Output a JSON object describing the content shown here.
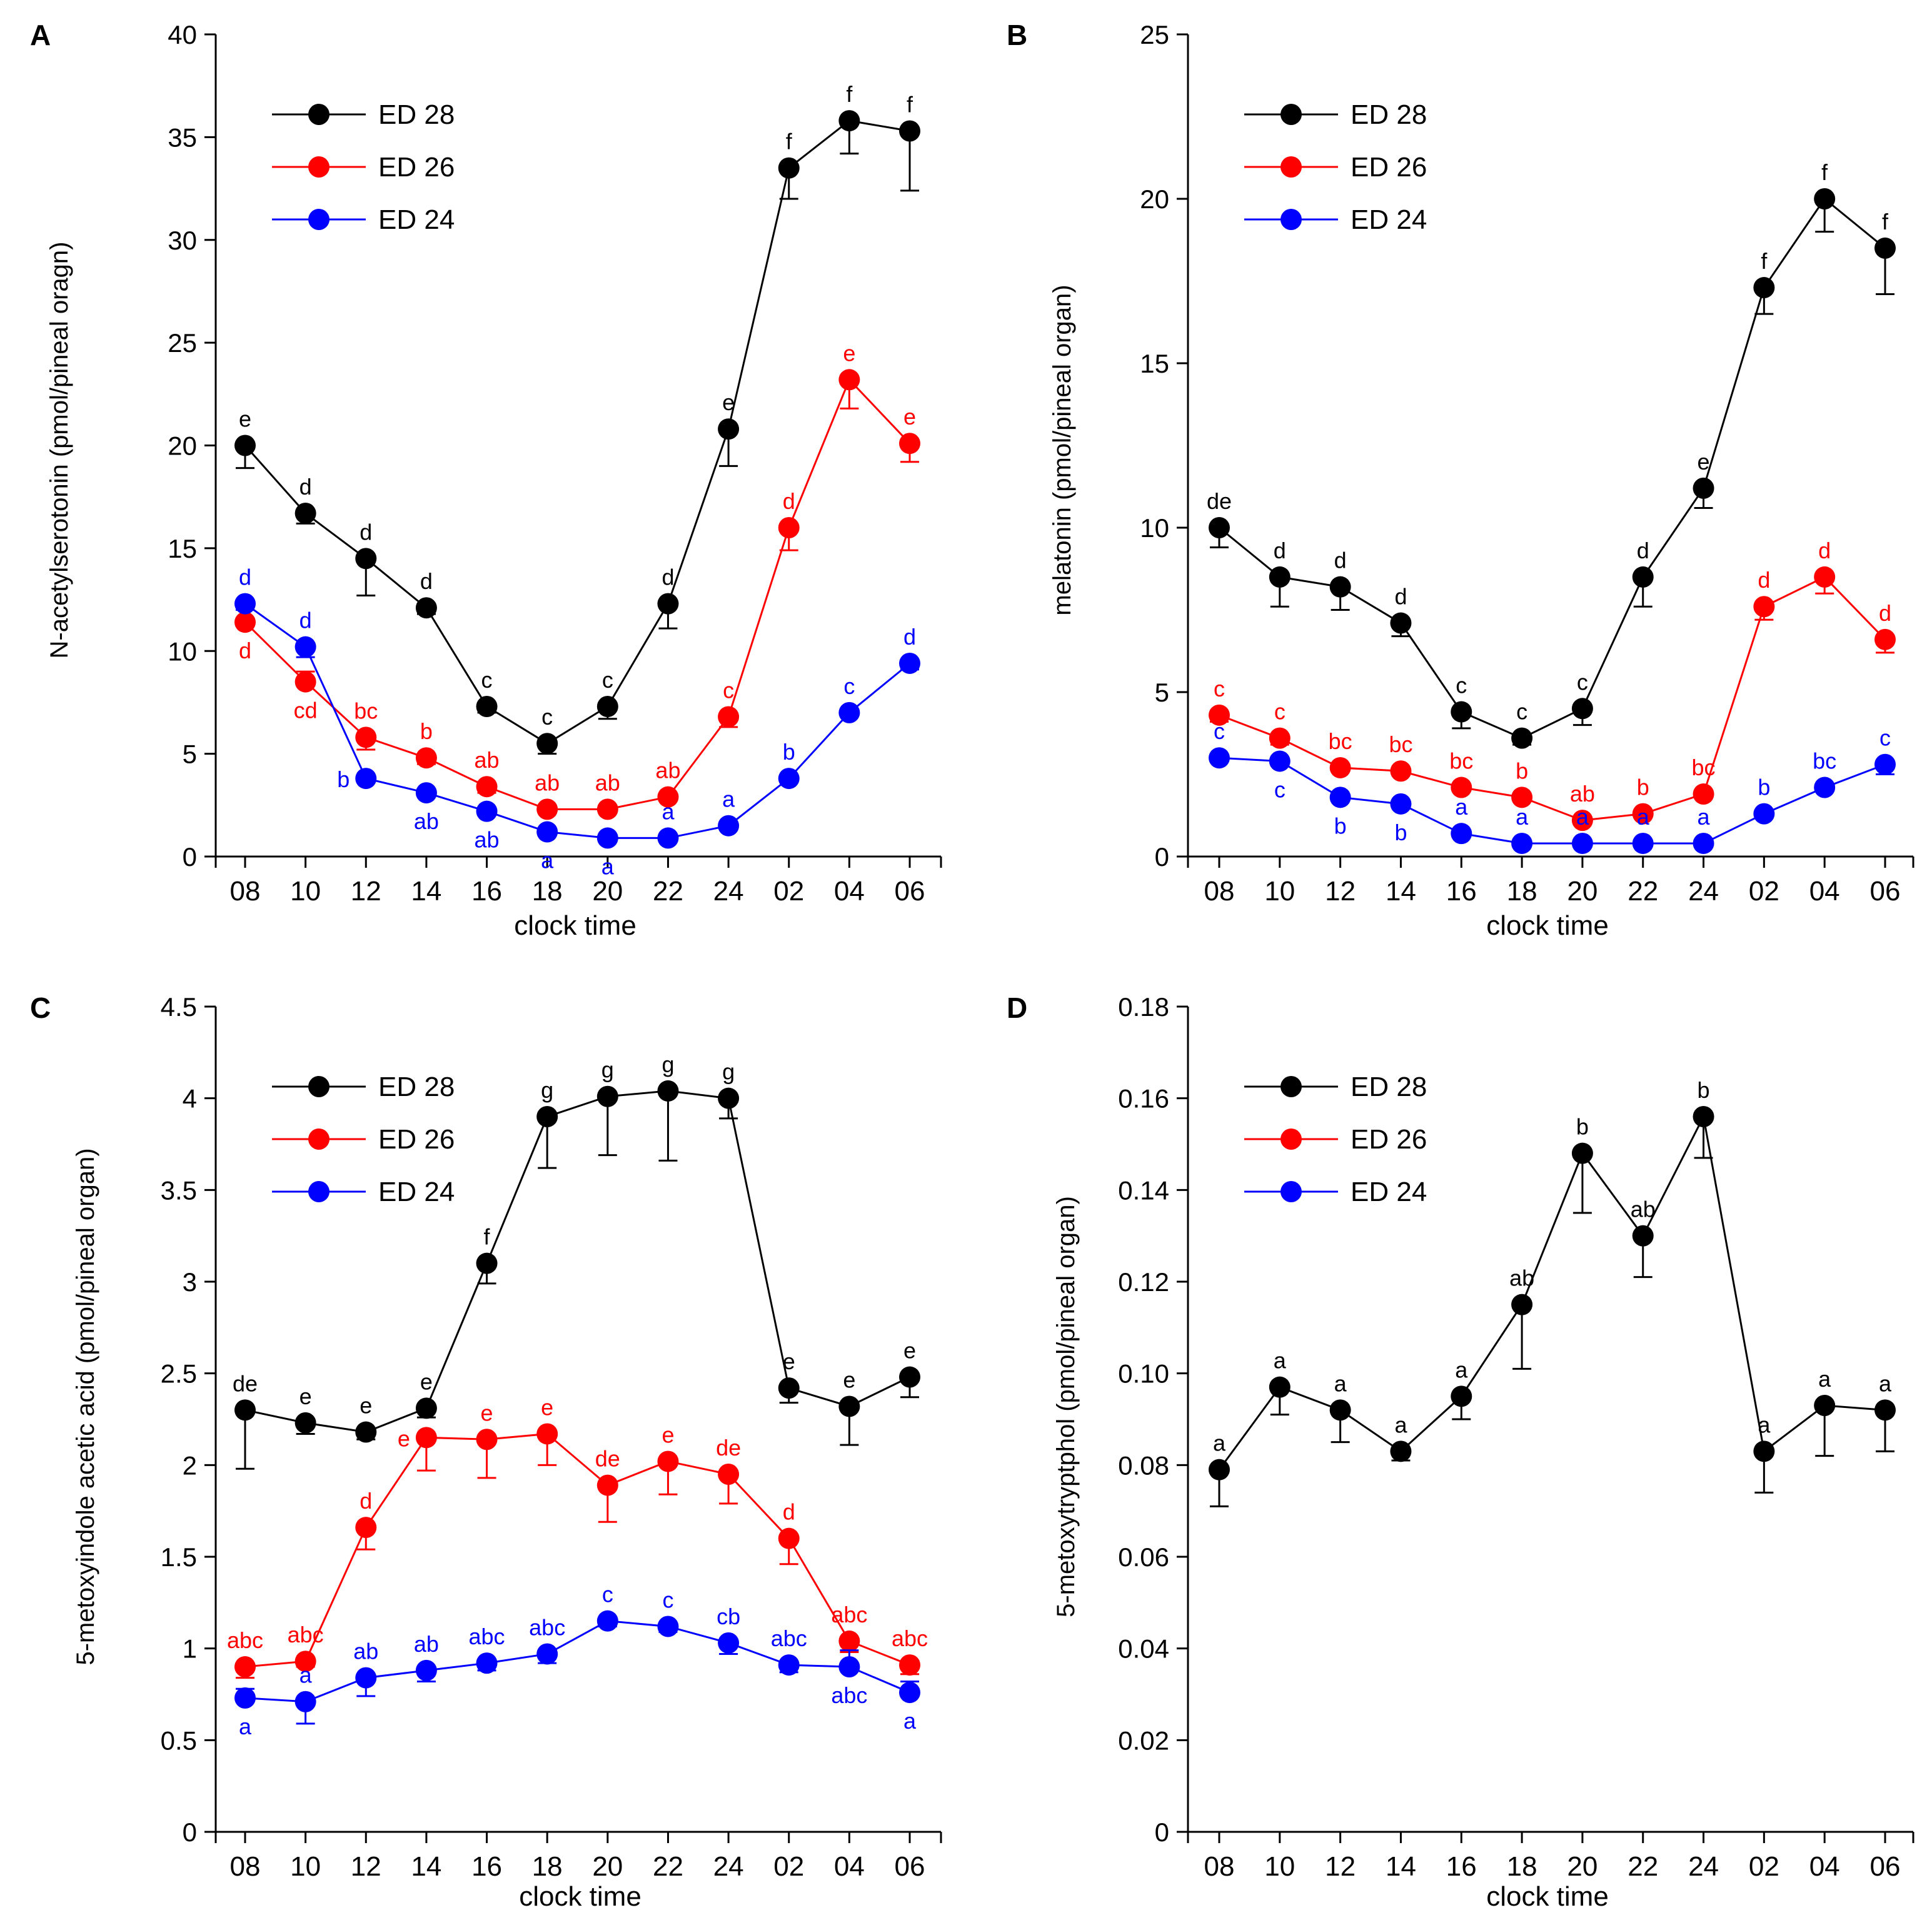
{
  "figure": {
    "colors": {
      "ED 28": "#000000",
      "ED 26": "#ff0000",
      "ED 24": "#0000ff",
      "axis": "#000000"
    }
  },
  "chart_data": [
    {
      "panel": "A",
      "type": "line",
      "xlabel": "clock time",
      "ylabel": "N-acetylserotonin  (pmol/pineal oragn)",
      "categories": [
        "08",
        "10",
        "12",
        "14",
        "16",
        "18",
        "20",
        "22",
        "24",
        "02",
        "04",
        "06"
      ],
      "ylim": [
        0,
        40
      ],
      "yticks": [
        0,
        5,
        10,
        15,
        20,
        25,
        30,
        35,
        40
      ],
      "ytick_labels": [
        "0",
        "5",
        "10",
        "15",
        "20",
        "25",
        "30",
        "35",
        "40"
      ],
      "legend": "top-left",
      "series": [
        {
          "name": "ED 28",
          "color": "#000000",
          "values": [
            20,
            16.7,
            14.5,
            12.1,
            7.3,
            5.5,
            7.3,
            12.3,
            20.8,
            33.5,
            35.8,
            35.3
          ],
          "errors": [
            1.1,
            0.5,
            1.8,
            0.3,
            0.3,
            0.5,
            0.6,
            1.2,
            1.8,
            1.5,
            1.6,
            2.9
          ],
          "labels": [
            "e",
            "d",
            "d",
            "d",
            "c",
            "c",
            "c",
            "d",
            "e",
            "f",
            "f",
            "f"
          ],
          "label_pos": [
            "above",
            "above",
            "above",
            "above",
            "above",
            "above",
            "above",
            "above",
            "above",
            "above",
            "above",
            "above"
          ]
        },
        {
          "name": "ED 26",
          "color": "#ff0000",
          "values": [
            11.4,
            8.5,
            5.8,
            4.8,
            3.4,
            2.3,
            2.3,
            2.9,
            6.8,
            16,
            23.2,
            20.1
          ],
          "errors": [
            0.6,
            0.5,
            0.6,
            0.3,
            0.3,
            0.2,
            0.2,
            0.2,
            0.5,
            1.1,
            1.4,
            0.9
          ],
          "labels": [
            "d",
            "cd",
            "bc",
            "b",
            "ab",
            "ab",
            "ab",
            "ab",
            "c",
            "d",
            "e",
            "e"
          ],
          "label_pos": [
            "below",
            "below",
            "above",
            "above",
            "above",
            "above",
            "above",
            "above",
            "above",
            "above",
            "above",
            "above"
          ]
        },
        {
          "name": "ED 24",
          "color": "#0000ff",
          "values": [
            12.3,
            10.2,
            3.8,
            3.1,
            2.2,
            1.2,
            0.9,
            0.9,
            1.5,
            3.8,
            7,
            9.4
          ],
          "errors": [
            0.3,
            0.5,
            0.2,
            0.2,
            0.2,
            0.1,
            0.1,
            0.1,
            0.1,
            0.2,
            0.2,
            0.3
          ],
          "labels": [
            "d",
            "d",
            "b",
            "ab",
            "ab",
            "a",
            "a",
            "a",
            "a",
            "b",
            "c",
            "d"
          ],
          "label_pos": [
            "above",
            "above",
            "left",
            "below",
            "below",
            "below",
            "below",
            "above",
            "above",
            "above",
            "above",
            "above"
          ]
        }
      ]
    },
    {
      "panel": "B",
      "type": "line",
      "xlabel": "clock time",
      "ylabel": "melatonin (pmol/pineal organ)",
      "categories": [
        "08",
        "10",
        "12",
        "14",
        "16",
        "18",
        "20",
        "22",
        "24",
        "02",
        "04",
        "06"
      ],
      "ylim": [
        0,
        25
      ],
      "yticks": [
        0,
        5,
        10,
        15,
        20,
        25
      ],
      "ytick_labels": [
        "0",
        "5",
        "10",
        "15",
        "20",
        "25"
      ],
      "legend": "top-left",
      "series": [
        {
          "name": "ED 28",
          "color": "#000000",
          "values": [
            10,
            8.5,
            8.2,
            7.1,
            4.4,
            3.6,
            4.5,
            8.5,
            11.2,
            17.3,
            20,
            18.5
          ],
          "errors": [
            0.6,
            0.9,
            0.7,
            0.4,
            0.5,
            0.2,
            0.5,
            0.9,
            0.6,
            0.8,
            1.0,
            1.4
          ],
          "labels": [
            "de",
            "d",
            "d",
            "d",
            "c",
            "c",
            "c",
            "d",
            "e",
            "f",
            "f",
            "f"
          ],
          "label_pos": [
            "above",
            "above",
            "above",
            "above",
            "above",
            "above",
            "above",
            "above",
            "above",
            "above",
            "above",
            "above"
          ]
        },
        {
          "name": "ED 26",
          "color": "#ff0000",
          "values": [
            4.3,
            3.6,
            2.7,
            2.6,
            2.1,
            1.8,
            1.1,
            1.3,
            1.9,
            7.6,
            8.5,
            6.6
          ],
          "errors": [
            0.2,
            0.2,
            0.1,
            0.1,
            0.1,
            0.1,
            0.1,
            0.1,
            0.1,
            0.4,
            0.5,
            0.4
          ],
          "labels": [
            "c",
            "c",
            "bc",
            "bc",
            "bc",
            "b",
            "ab",
            "b",
            "bc",
            "d",
            "d",
            "d"
          ],
          "label_pos": [
            "above",
            "above",
            "above",
            "above",
            "above",
            "above",
            "above",
            "above",
            "above",
            "above",
            "above",
            "above"
          ]
        },
        {
          "name": "ED 24",
          "color": "#0000ff",
          "values": [
            3.0,
            2.9,
            1.8,
            1.6,
            0.7,
            0.4,
            0.4,
            0.4,
            0.4,
            1.3,
            2.1,
            2.8
          ],
          "errors": [
            0.1,
            0.1,
            0.1,
            0.1,
            0.1,
            0.1,
            0.1,
            0.1,
            0.1,
            0.1,
            0.1,
            0.3
          ],
          "labels": [
            "c",
            "c",
            "b",
            "b",
            "a",
            "a",
            "a",
            "a",
            "a",
            "b",
            "bc",
            "c"
          ],
          "label_pos": [
            "above",
            "below",
            "below",
            "below",
            "above",
            "above",
            "above",
            "above",
            "above",
            "above",
            "above",
            "above"
          ]
        }
      ]
    },
    {
      "panel": "C",
      "type": "line",
      "xlabel": "clock time",
      "ylabel": "5-metoxyindole acetic acid  (pmol/pineal organ)",
      "categories": [
        "08",
        "10",
        "12",
        "14",
        "16",
        "18",
        "20",
        "22",
        "24",
        "02",
        "04",
        "06"
      ],
      "ylim": [
        0,
        4.5
      ],
      "yticks": [
        0,
        0.5,
        1,
        1.5,
        2,
        2.5,
        3,
        3.5,
        4,
        4.5
      ],
      "ytick_labels": [
        "0",
        "0.5",
        "1",
        "1.5",
        "2",
        "2.5",
        "3",
        "3.5",
        "4",
        "4.5"
      ],
      "legend": "top-left",
      "series": [
        {
          "name": "ED 28",
          "color": "#000000",
          "values": [
            2.3,
            2.23,
            2.18,
            2.31,
            3.1,
            3.9,
            4.01,
            4.04,
            4.0,
            2.42,
            2.32,
            2.48
          ],
          "errors": [
            0.32,
            0.06,
            0.04,
            0.05,
            0.11,
            0.28,
            0.32,
            0.38,
            0.11,
            0.08,
            0.21,
            0.11
          ],
          "labels": [
            "de",
            "e",
            "e",
            "e",
            "f",
            "g",
            "g",
            "g",
            "g",
            "e",
            "e",
            "e"
          ],
          "label_pos": [
            "above",
            "above",
            "above",
            "above",
            "above",
            "above",
            "above",
            "above",
            "above",
            "above",
            "above",
            "above"
          ]
        },
        {
          "name": "ED 26",
          "color": "#ff0000",
          "values": [
            0.9,
            0.93,
            1.66,
            2.15,
            2.14,
            2.17,
            1.89,
            2.02,
            1.95,
            1.6,
            1.04,
            0.91
          ],
          "errors": [
            0.06,
            0.03,
            0.12,
            0.18,
            0.21,
            0.17,
            0.2,
            0.18,
            0.16,
            0.14,
            0.06,
            0.05
          ],
          "labels": [
            "abc",
            "abc",
            "d",
            "e",
            "e",
            "e",
            "de",
            "e",
            "de",
            "d",
            "abc",
            "abc"
          ],
          "label_pos": [
            "above",
            "above",
            "above",
            "left",
            "above",
            "above",
            "above",
            "above",
            "above",
            "above",
            "above",
            "above"
          ]
        },
        {
          "name": "ED 24",
          "color": "#0000ff",
          "values": [
            0.73,
            0.71,
            0.84,
            0.88,
            0.92,
            0.97,
            1.15,
            1.12,
            1.03,
            0.91,
            0.9,
            0.76
          ],
          "errors": [
            0.05,
            0.12,
            0.1,
            0.06,
            0.04,
            0.05,
            0.03,
            0.03,
            0.06,
            0.04,
            0.09,
            0.06
          ],
          "labels": [
            "a",
            "a",
            "ab",
            "ab",
            "abc",
            "abc",
            "c",
            "c",
            "cb",
            "abc",
            "abc",
            "a"
          ],
          "label_pos": [
            "below",
            "above",
            "above",
            "above",
            "above",
            "above",
            "above",
            "above",
            "above",
            "above",
            "below",
            "below"
          ]
        }
      ]
    },
    {
      "panel": "D",
      "type": "line",
      "xlabel": "clock time",
      "ylabel": "5-metoxytryptphol  (pmol/pineal organ)",
      "categories": [
        "08",
        "10",
        "12",
        "14",
        "16",
        "18",
        "20",
        "22",
        "24",
        "02",
        "04",
        "06"
      ],
      "ylim": [
        0,
        0.18
      ],
      "yticks": [
        0,
        0.02,
        0.04,
        0.06,
        0.08,
        0.1,
        0.12,
        0.14,
        0.16,
        0.18
      ],
      "ytick_labels": [
        "0",
        "0.02",
        "0.04",
        "0.06",
        "0.08",
        "0.10",
        "0.12",
        "0.14",
        "0.16",
        "0.18"
      ],
      "legend": "top-left",
      "series": [
        {
          "name": "ED 28",
          "color": "#000000",
          "values": [
            0.079,
            0.097,
            0.092,
            0.083,
            0.095,
            0.115,
            0.148,
            0.13,
            0.156,
            0.083,
            0.093,
            0.092
          ],
          "errors": [
            0.008,
            0.006,
            0.007,
            0.002,
            0.005,
            0.014,
            0.013,
            0.009,
            0.009,
            0.009,
            0.011,
            0.009
          ],
          "labels": [
            "a",
            "a",
            "a",
            "a",
            "a",
            "ab",
            "b",
            "ab",
            "b",
            "a",
            "a",
            "a"
          ],
          "label_pos": [
            "above",
            "above",
            "above",
            "above",
            "above",
            "above",
            "above",
            "above",
            "above",
            "above",
            "above",
            "above"
          ]
        }
      ]
    }
  ]
}
